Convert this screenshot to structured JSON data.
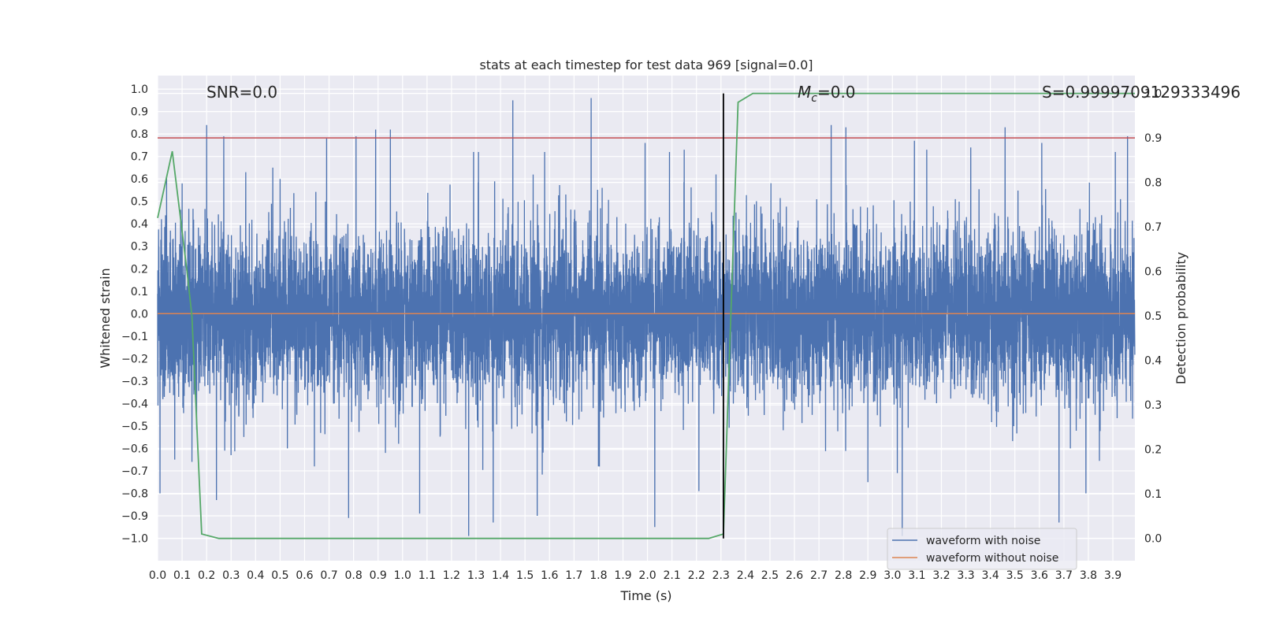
{
  "chart_data": {
    "type": "line",
    "title": "stats at each timestep for test data 969 [signal=0.0]",
    "xlabel": "Time (s)",
    "ylabel": "Whitened strain",
    "y2label": "Detection probability",
    "xlim": [
      0.0,
      3.99
    ],
    "ylim": [
      -1.1,
      1.06
    ],
    "y2lim": [
      -0.05,
      1.04
    ],
    "x_ticks": [
      0.0,
      0.1,
      0.2,
      0.3,
      0.4,
      0.5,
      0.6,
      0.7,
      0.8,
      0.9,
      1.0,
      1.1,
      1.2,
      1.3,
      1.4,
      1.5,
      1.6,
      1.7,
      1.8,
      1.9,
      2.0,
      2.1,
      2.2,
      2.3,
      2.4,
      2.5,
      2.6,
      2.7,
      2.8,
      2.9,
      3.0,
      3.1,
      3.2,
      3.3,
      3.4,
      3.5,
      3.6,
      3.7,
      3.8,
      3.9
    ],
    "x_tick_labels": [
      "0.0",
      "0.1",
      "0.2",
      "0.3",
      "0.4",
      "0.5",
      "0.6",
      "0.7",
      "0.8",
      "0.9",
      "1.0",
      "1.1",
      "1.2",
      "1.3",
      "1.4",
      "1.5",
      "1.6",
      "1.7",
      "1.8",
      "1.9",
      "2.0",
      "2.1",
      "2.2",
      "2.3",
      "2.4",
      "2.5",
      "2.6",
      "2.7",
      "2.8",
      "2.9",
      "3.0",
      "3.1",
      "3.2",
      "3.3",
      "3.4",
      "3.5",
      "3.6",
      "3.7",
      "3.8",
      "3.9"
    ],
    "y_ticks": [
      1.0,
      0.9,
      0.8,
      0.7,
      0.6,
      0.5,
      0.4,
      0.3,
      0.2,
      0.1,
      0.0,
      -0.1,
      -0.2,
      -0.3,
      -0.4,
      -0.5,
      -0.6,
      -0.7,
      -0.8,
      -0.9,
      -1.0
    ],
    "y_tick_labels": [
      "1.0",
      "0.9",
      "0.8",
      "0.7",
      "0.6",
      "0.5",
      "0.4",
      "0.3",
      "0.2",
      "0.1",
      "0.0",
      "−0.1",
      "−0.2",
      "−0.3",
      "−0.4",
      "−0.5",
      "−0.6",
      "−0.7",
      "−0.8",
      "−0.9",
      "−1.0"
    ],
    "y2_ticks": [
      1.0,
      0.9,
      0.8,
      0.7,
      0.6,
      0.5,
      0.4,
      0.3,
      0.2,
      0.1,
      0.0
    ],
    "y2_tick_labels": [
      "1.0",
      "0.9",
      "0.8",
      "0.7",
      "0.6",
      "0.5",
      "0.4",
      "0.3",
      "0.2",
      "0.1",
      "0.0"
    ],
    "grid": true,
    "annotations": {
      "snr": "SNR=0.0",
      "mc_symbol": "M",
      "mc_subscript": "c",
      "mc_value": "=0.0",
      "s": "S=0.9999709129333496"
    },
    "noise_waveform": {
      "sample_rate": 2048,
      "duration": 3.99,
      "typical_amplitude": 0.3,
      "peaks": [
        [
          0.01,
          -0.8
        ],
        [
          0.07,
          -0.65
        ],
        [
          0.1,
          0.58
        ],
        [
          0.14,
          -0.66
        ],
        [
          0.2,
          0.84
        ],
        [
          0.24,
          -0.83
        ],
        [
          0.27,
          0.79
        ],
        [
          0.3,
          -0.63
        ],
        [
          0.36,
          0.63
        ],
        [
          0.47,
          0.65
        ],
        [
          0.5,
          0.6
        ],
        [
          0.53,
          -0.6
        ],
        [
          0.64,
          -0.68
        ],
        [
          0.69,
          0.78
        ],
        [
          0.78,
          -0.91
        ],
        [
          0.81,
          0.79
        ],
        [
          0.89,
          0.82
        ],
        [
          0.93,
          -0.62
        ],
        [
          0.95,
          0.82
        ],
        [
          1.07,
          -0.89
        ],
        [
          1.27,
          -0.99
        ],
        [
          1.29,
          0.72
        ],
        [
          1.31,
          0.72
        ],
        [
          1.37,
          -0.93
        ],
        [
          1.45,
          0.95
        ],
        [
          1.55,
          -0.9
        ],
        [
          1.58,
          0.72
        ],
        [
          1.77,
          0.96
        ],
        [
          1.8,
          -0.68
        ],
        [
          1.99,
          0.76
        ],
        [
          2.03,
          -0.95
        ],
        [
          2.09,
          0.72
        ],
        [
          2.15,
          0.73
        ],
        [
          2.21,
          -0.79
        ],
        [
          2.28,
          0.62
        ],
        [
          2.75,
          0.84
        ],
        [
          2.81,
          0.83
        ],
        [
          2.9,
          -0.75
        ],
        [
          3.02,
          -0.71
        ],
        [
          3.04,
          -0.99
        ],
        [
          3.09,
          0.77
        ],
        [
          3.14,
          0.73
        ],
        [
          3.32,
          0.74
        ],
        [
          3.46,
          0.83
        ],
        [
          3.61,
          0.76
        ],
        [
          3.68,
          -0.93
        ],
        [
          3.79,
          -0.8
        ],
        [
          3.91,
          0.72
        ],
        [
          3.96,
          0.79
        ]
      ]
    },
    "series": [
      {
        "name": "waveform with noise",
        "color": "#4c72b0",
        "axis": "left"
      },
      {
        "name": "waveform without noise",
        "color": "#dd8452",
        "axis": "left",
        "x": [
          0.0,
          3.99
        ],
        "y": [
          0.0,
          0.0
        ]
      },
      {
        "color": "#55a868",
        "axis": "right",
        "x": [
          0.0,
          0.06,
          0.12,
          0.14,
          0.18,
          0.25,
          2.25,
          2.31,
          2.37,
          2.43,
          3.99
        ],
        "y": [
          0.72,
          0.87,
          0.6,
          0.5,
          0.01,
          0.0,
          0.0,
          0.01,
          0.98,
          1.0,
          1.0
        ]
      },
      {
        "color": "#c44e52",
        "axis": "right",
        "type": "hline",
        "y": 0.9
      }
    ],
    "vline": {
      "x": 2.31,
      "color": "#000000",
      "ymin_right": 0.0,
      "ymax_right": 1.0
    },
    "legend_loc": "lower right"
  }
}
